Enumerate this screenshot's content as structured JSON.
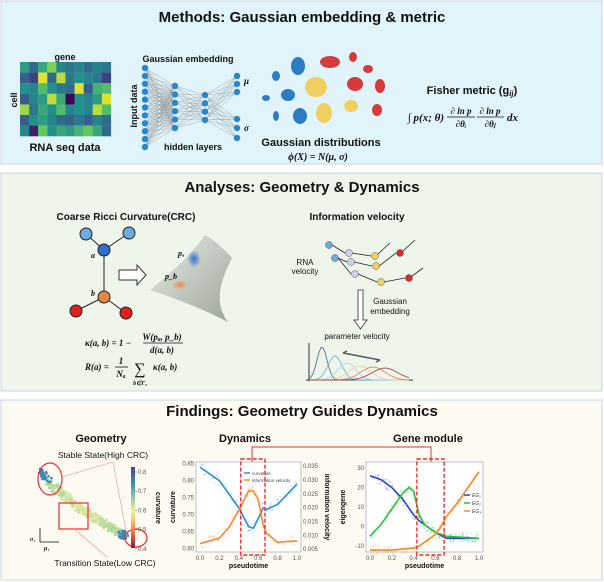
{
  "methods": {
    "title": "Methods: Gaussian embedding & metric",
    "heatmap": {
      "col_label": "gene",
      "row_label": "cell",
      "caption": "RNA seq data",
      "values": [
        [
          0.55,
          0.35,
          0.6,
          0.8,
          0.45,
          0.4,
          0.45,
          0.35,
          0.45,
          0.4
        ],
        [
          0.3,
          0.2,
          0.95,
          0.35,
          0.9,
          0.4,
          0.5,
          0.45,
          0.4,
          0.2
        ],
        [
          0.5,
          0.45,
          0.7,
          0.5,
          0.4,
          0.35,
          0.95,
          0.3,
          0.65,
          0.7
        ],
        [
          0.3,
          0.45,
          0.55,
          0.9,
          0.6,
          0.0,
          0.5,
          0.45,
          0.55,
          0.95
        ],
        [
          0.85,
          0.4,
          0.6,
          0.5,
          0.7,
          0.45,
          0.5,
          0.45,
          0.9,
          0.7
        ],
        [
          0.3,
          0.5,
          0.55,
          0.45,
          0.35,
          0.3,
          0.4,
          0.3,
          0.45,
          0.35
        ],
        [
          0.45,
          0.1,
          0.75,
          0.5,
          0.6,
          0.55,
          0.65,
          0.75,
          0.6,
          0.35
        ]
      ]
    },
    "network": {
      "title": "Gaussian embedding",
      "input_label": "Input data",
      "hidden_label": "hidden layers",
      "mu": "μ",
      "sigma": "σ"
    },
    "distributions": {
      "caption": "Gaussian distributions",
      "formula": "ϕ(X) = N(μ, σ)"
    },
    "fisher": {
      "title": "Fisher metric (g",
      "title_sub": "ij",
      "title_end": ")",
      "formula_lhs": "∫  p(x; θ)",
      "num1": "∂ ln p",
      "den1": "∂θᵢ",
      "num2": "∂ ln p",
      "den2": "∂θⱼ",
      "tail": "dx"
    }
  },
  "analyses": {
    "title": "Analyses: Geometry & Dynamics",
    "crc": {
      "title": "Coarse Ricci Curvature(CRC)",
      "node_a": "a",
      "node_b": "b",
      "pa": "pₐ",
      "pb": "p_b",
      "formula1_lhs": "κ(a, b) = 1 −",
      "formula1_num": "W(pₐ, p_b)",
      "formula1_den": "d(a, b)",
      "formula2_lhs": "R(a) =",
      "formula2_num": "1",
      "formula2_den": "Nₐ",
      "formula2_sum": "∑",
      "formula2_sub": "b∈Γₐ",
      "formula2_rhs": "κ(a, b)"
    },
    "velocity": {
      "title": "Information velocity",
      "rna_label_1": "RNA",
      "rna_label_2": "velocity",
      "embed_label_1": "Gaussian",
      "embed_label_2": "embedding",
      "param_label": "parameter velocity"
    }
  },
  "findings": {
    "title": "Findings: Geometry Guides Dynamics",
    "geometry": {
      "title": "Geometry",
      "stable_label": "Stable State(High CRC)",
      "transition_label": "Transition State(Low CRC)",
      "colorbar_label": "curvature",
      "colorbar_ticks": [
        "0.8",
        "0.7",
        "0.6",
        "0.5",
        "0.4"
      ],
      "axis_x": "μ₁",
      "axis_y": "σ₁"
    },
    "dynamics_title": "Dynamics",
    "gene_module_title": "Gene module",
    "colors": {
      "curvature": "#2a8de0",
      "velocity": "#f58a2c",
      "eg1": "#2546d8",
      "eg2": "#2bbf3a",
      "eg3": "#f58a1e",
      "highlight": "#e53030"
    }
  },
  "chart_data": [
    {
      "type": "line",
      "xlabel": "pseudotime",
      "ylabel": "curvature",
      "y2label": "information velocity",
      "xlim": [
        0,
        1
      ],
      "ylim": [
        0.59,
        0.855
      ],
      "y2lim": [
        0.004,
        0.0365
      ],
      "xticks": [
        "0.0",
        "0.2",
        "0.4",
        "0.6",
        "0.8",
        "1.0"
      ],
      "yticks": [
        "0.85",
        "0.80",
        "0.75",
        "0.70",
        "0.65",
        "0.60"
      ],
      "y2ticks": [
        "0.035",
        "0.030",
        "0.025",
        "0.020",
        "0.015",
        "0.010",
        "0.005"
      ],
      "highlight_x": [
        0.42,
        0.67
      ],
      "legend": "top-right",
      "series": [
        {
          "name": "curvature",
          "axis": "left",
          "x": [
            0,
            0.2,
            0.3,
            0.4,
            0.5,
            0.55,
            0.62,
            0.65,
            0.68,
            0.8,
            1.0
          ],
          "y": [
            0.84,
            0.8,
            0.76,
            0.72,
            0.665,
            0.66,
            0.7,
            0.72,
            0.715,
            0.73,
            0.79
          ]
        },
        {
          "name": "information velocity",
          "axis": "right",
          "x": [
            0,
            0.2,
            0.3,
            0.4,
            0.5,
            0.55,
            0.6,
            0.65,
            0.68,
            0.8,
            1.0
          ],
          "y": [
            0.007,
            0.009,
            0.013,
            0.019,
            0.026,
            0.026,
            0.023,
            0.014,
            0.011,
            0.0075,
            0.008
          ]
        }
      ]
    },
    {
      "type": "line",
      "xlabel": "pseudotime",
      "ylabel": "eigengene",
      "xlim": [
        0,
        1
      ],
      "ylim": [
        -13,
        33
      ],
      "xticks": [
        "0.0",
        "0.2",
        "0.4",
        "0.6",
        "0.8",
        "1.0"
      ],
      "yticks": [
        "30",
        "20",
        "10",
        "0",
        "-10"
      ],
      "highlight_x": [
        0.43,
        0.68
      ],
      "legend": "right",
      "series": [
        {
          "name": "EG₁",
          "x": [
            0,
            0.1,
            0.2,
            0.3,
            0.4,
            0.45,
            0.5,
            0.6,
            0.7,
            0.8,
            1.0
          ],
          "y": [
            26,
            24,
            20,
            14,
            6,
            3,
            1,
            -3,
            -6,
            -6,
            -6
          ]
        },
        {
          "name": "EG₂",
          "x": [
            0,
            0.1,
            0.2,
            0.3,
            0.36,
            0.4,
            0.45,
            0.5,
            0.6,
            0.7,
            1.0
          ],
          "y": [
            -5,
            1,
            9,
            17,
            20,
            18,
            6,
            1,
            -3,
            -5,
            -6
          ]
        },
        {
          "name": "EG₃",
          "x": [
            0,
            0.2,
            0.4,
            0.45,
            0.5,
            0.6,
            0.65,
            0.7,
            0.8,
            0.9,
            1.0
          ],
          "y": [
            -12,
            -12,
            -11,
            -10,
            -8,
            -4,
            0,
            5,
            12,
            20,
            28
          ]
        }
      ]
    }
  ]
}
